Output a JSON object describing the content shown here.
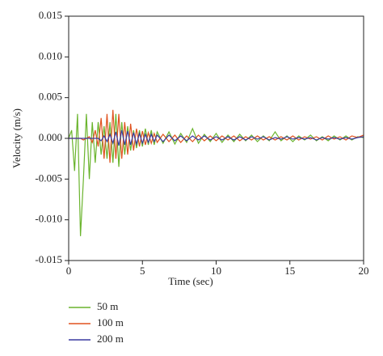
{
  "chart_data": {
    "type": "line",
    "xlabel": "Time (sec)",
    "ylabel": "Velocity (m/s)",
    "xlim": [
      0,
      20
    ],
    "xticks": [
      0,
      5,
      10,
      15,
      20
    ],
    "ylim": [
      -0.015,
      0.015
    ],
    "yticks": [
      {
        "value": -0.015,
        "label": "-0.015"
      },
      {
        "value": -0.01,
        "label": "-0.010"
      },
      {
        "value": -0.005,
        "label": "-0.005"
      },
      {
        "value": 0,
        "label": "0.000"
      },
      {
        "value": 0.005,
        "label": "0.005"
      },
      {
        "value": 0.01,
        "label": "0.010"
      },
      {
        "value": 0.015,
        "label": "0.015"
      }
    ],
    "legend": "below",
    "x": [
      0,
      0.2,
      0.4,
      0.6,
      0.8,
      1.0,
      1.2,
      1.4,
      1.6,
      1.8,
      2.0,
      2.2,
      2.4,
      2.6,
      2.8,
      3.0,
      3.2,
      3.4,
      3.6,
      3.8,
      4.0,
      4.2,
      4.4,
      4.6,
      4.8,
      5.0,
      5.2,
      5.4,
      5.6,
      5.8,
      6.0,
      6.4,
      6.8,
      7.2,
      7.6,
      8.0,
      8.4,
      8.8,
      9.2,
      9.6,
      10.0,
      10.4,
      10.8,
      11.2,
      11.6,
      12.0,
      12.4,
      12.8,
      13.2,
      13.6,
      14.0,
      14.4,
      14.8,
      15.2,
      15.6,
      16.0,
      16.4,
      16.8,
      17.2,
      17.6,
      18.0,
      18.4,
      18.8,
      19.2,
      19.6,
      20.0
    ],
    "series": [
      {
        "name": "50 m",
        "color": "#6ab42d",
        "values": [
          0,
          0.001,
          -0.004,
          0.003,
          -0.012,
          -0.005,
          0.003,
          -0.005,
          0.002,
          -0.003,
          0.002,
          -0.002,
          0.0015,
          -0.0025,
          0.002,
          -0.003,
          0.003,
          -0.0035,
          0.002,
          -0.002,
          0.0015,
          -0.0015,
          0.001,
          -0.0012,
          0.001,
          -0.001,
          0.0012,
          -0.0008,
          0.001,
          -0.0008,
          0.0008,
          -0.0006,
          0.0008,
          -0.0007,
          0.0006,
          -0.0005,
          0.0012,
          -0.0006,
          0.0005,
          -0.0004,
          0.0006,
          -0.0005,
          0.0004,
          -0.0004,
          0.0005,
          -0.0003,
          0.0004,
          -0.0004,
          0.0003,
          -0.0003,
          0.0008,
          -0.0003,
          0.0003,
          -0.0004,
          0.0003,
          -0.0002,
          0.0004,
          -0.0003,
          0.0002,
          -0.0003,
          0.0003,
          -0.0002,
          0.0003,
          -0.0002,
          0.0002,
          0.0001
        ]
      },
      {
        "name": "100 m",
        "color": "#e0521f",
        "values": [
          0,
          0,
          0,
          0,
          0,
          -0.0002,
          0,
          0.0002,
          -0.0005,
          0.001,
          -0.001,
          0.0025,
          -0.0025,
          0.003,
          -0.003,
          0.0035,
          -0.0025,
          0.003,
          -0.0025,
          0.002,
          -0.002,
          0.0018,
          -0.0015,
          0.0012,
          -0.001,
          0.0009,
          -0.0008,
          0.0007,
          -0.0006,
          0.0006,
          -0.0005,
          0.0005,
          -0.0004,
          0.0004,
          -0.0005,
          0.0003,
          -0.0004,
          0.0004,
          -0.0003,
          0.0003,
          -0.0003,
          0.0003,
          -0.0002,
          0.0003,
          -0.0003,
          0.0002,
          -0.0002,
          0.0003,
          -0.0002,
          0.0002,
          -0.0002,
          0.0002,
          -0.0002,
          0.0003,
          -0.0002,
          0.0002,
          -0.0001,
          0.0002,
          -0.0002,
          0.0003,
          -0.0001,
          0.0002,
          -0.0002,
          0.0003,
          0.0001,
          0.0004
        ]
      },
      {
        "name": "200 m",
        "color": "#3a3aa0",
        "values": [
          0,
          0,
          0,
          0,
          0,
          0,
          0,
          0,
          0,
          0,
          0,
          -0.0003,
          0.0003,
          -0.0004,
          0.0005,
          -0.0006,
          0.0008,
          -0.0009,
          0.001,
          -0.0008,
          0.0009,
          -0.0008,
          0.0007,
          -0.0007,
          0.0006,
          -0.0006,
          0.0005,
          -0.0005,
          0.0005,
          -0.0004,
          0.0004,
          -0.0004,
          0.0004,
          -0.0003,
          0.0003,
          -0.0003,
          0.0003,
          -0.0002,
          0.0003,
          -0.0002,
          0.0002,
          -0.0002,
          0.0002,
          -0.0002,
          0.0002,
          -0.0002,
          0.0002,
          -0.0001,
          0.0002,
          -0.0002,
          0.0001,
          -0.0001,
          0.0002,
          -0.0001,
          0.0001,
          -0.0001,
          0.0001,
          -0.0002,
          0.0001,
          -0.0001,
          0.0001,
          -0.0001,
          0.0001,
          -0.0001,
          0.0001,
          0.0002
        ]
      }
    ]
  }
}
